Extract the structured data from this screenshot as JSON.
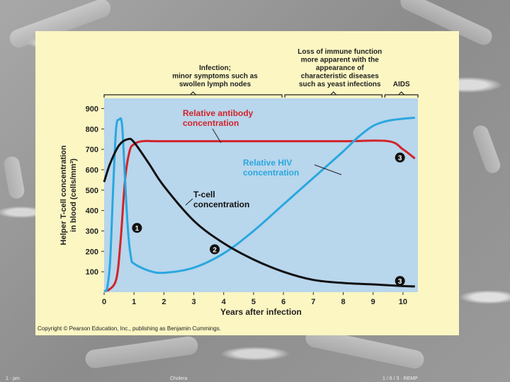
{
  "chart_data": {
    "type": "line",
    "xlabel": "Years after infection",
    "ylabel_line1": "Helper T-cell concentration",
    "ylabel_line2": "in blood (cells/mm³)",
    "xlim": [
      0,
      10.5
    ],
    "ylim": [
      0,
      950
    ],
    "x_ticks": [
      "0",
      "1",
      "2",
      "3",
      "4",
      "5",
      "6",
      "7",
      "8",
      "9",
      "10"
    ],
    "y_ticks": [
      "100",
      "200",
      "300",
      "400",
      "500",
      "600",
      "700",
      "800",
      "900"
    ],
    "phase_labels": {
      "infection": [
        "Infection;",
        "minor symptoms such as",
        "swollen lymph nodes"
      ],
      "loss": [
        "Loss of immune function",
        "more apparent with the",
        "appearance of",
        "characteristic diseases",
        "such as yeast infections"
      ],
      "aids": [
        "AIDS"
      ]
    },
    "series": [
      {
        "name": "Relative antibody concentration",
        "label_lines": [
          "Relative antibody",
          "concentration"
        ],
        "color": "#d2232a",
        "points": [
          [
            0.1,
            5
          ],
          [
            0.4,
            60
          ],
          [
            0.55,
            250
          ],
          [
            0.7,
            550
          ],
          [
            0.85,
            690
          ],
          [
            1.0,
            725
          ],
          [
            1.3,
            740
          ],
          [
            2,
            740
          ],
          [
            5,
            740
          ],
          [
            8,
            740
          ],
          [
            9.5,
            740
          ],
          [
            10,
            700
          ],
          [
            10.4,
            655
          ]
        ]
      },
      {
        "name": "Relative HIV concentration",
        "label_lines": [
          "Relative HIV",
          "concentration"
        ],
        "color": "#2aa7df",
        "points": [
          [
            0,
            5
          ],
          [
            0.1,
            20
          ],
          [
            0.2,
            150
          ],
          [
            0.3,
            500
          ],
          [
            0.4,
            800
          ],
          [
            0.5,
            845
          ],
          [
            0.6,
            820
          ],
          [
            0.7,
            550
          ],
          [
            0.8,
            300
          ],
          [
            0.9,
            170
          ],
          [
            1.0,
            140
          ],
          [
            1.5,
            105
          ],
          [
            2,
            95
          ],
          [
            3,
            120
          ],
          [
            4,
            190
          ],
          [
            5,
            300
          ],
          [
            6,
            430
          ],
          [
            7,
            560
          ],
          [
            8,
            690
          ],
          [
            8.5,
            760
          ],
          [
            9,
            815
          ],
          [
            9.5,
            840
          ],
          [
            10,
            850
          ],
          [
            10.4,
            855
          ]
        ]
      },
      {
        "name": "T-cell concentration",
        "label_lines": [
          "T-cell",
          "concentration"
        ],
        "color": "#111111",
        "points": [
          [
            0,
            540
          ],
          [
            0.2,
            630
          ],
          [
            0.5,
            720
          ],
          [
            0.8,
            750
          ],
          [
            1.0,
            735
          ],
          [
            1.5,
            630
          ],
          [
            2,
            520
          ],
          [
            3,
            350
          ],
          [
            4,
            240
          ],
          [
            5,
            160
          ],
          [
            6,
            100
          ],
          [
            7,
            60
          ],
          [
            8,
            45
          ],
          [
            9,
            38
          ],
          [
            10,
            30
          ],
          [
            10.4,
            28
          ]
        ]
      }
    ],
    "markers": [
      {
        "text": "1",
        "x": 1.1,
        "y": 315
      },
      {
        "text": "2",
        "x": 3.7,
        "y": 210
      },
      {
        "text": "3",
        "x": 9.9,
        "y": 660
      },
      {
        "text": "3",
        "x": 9.9,
        "y": 55
      }
    ]
  },
  "copyright": "Copyright © Pearson Education, Inc., publishing as Benjamin Cummings.",
  "footer": {
    "left": "1 · pm",
    "center": "Cholera",
    "right": "1 / 6 / 3 · REMP"
  }
}
